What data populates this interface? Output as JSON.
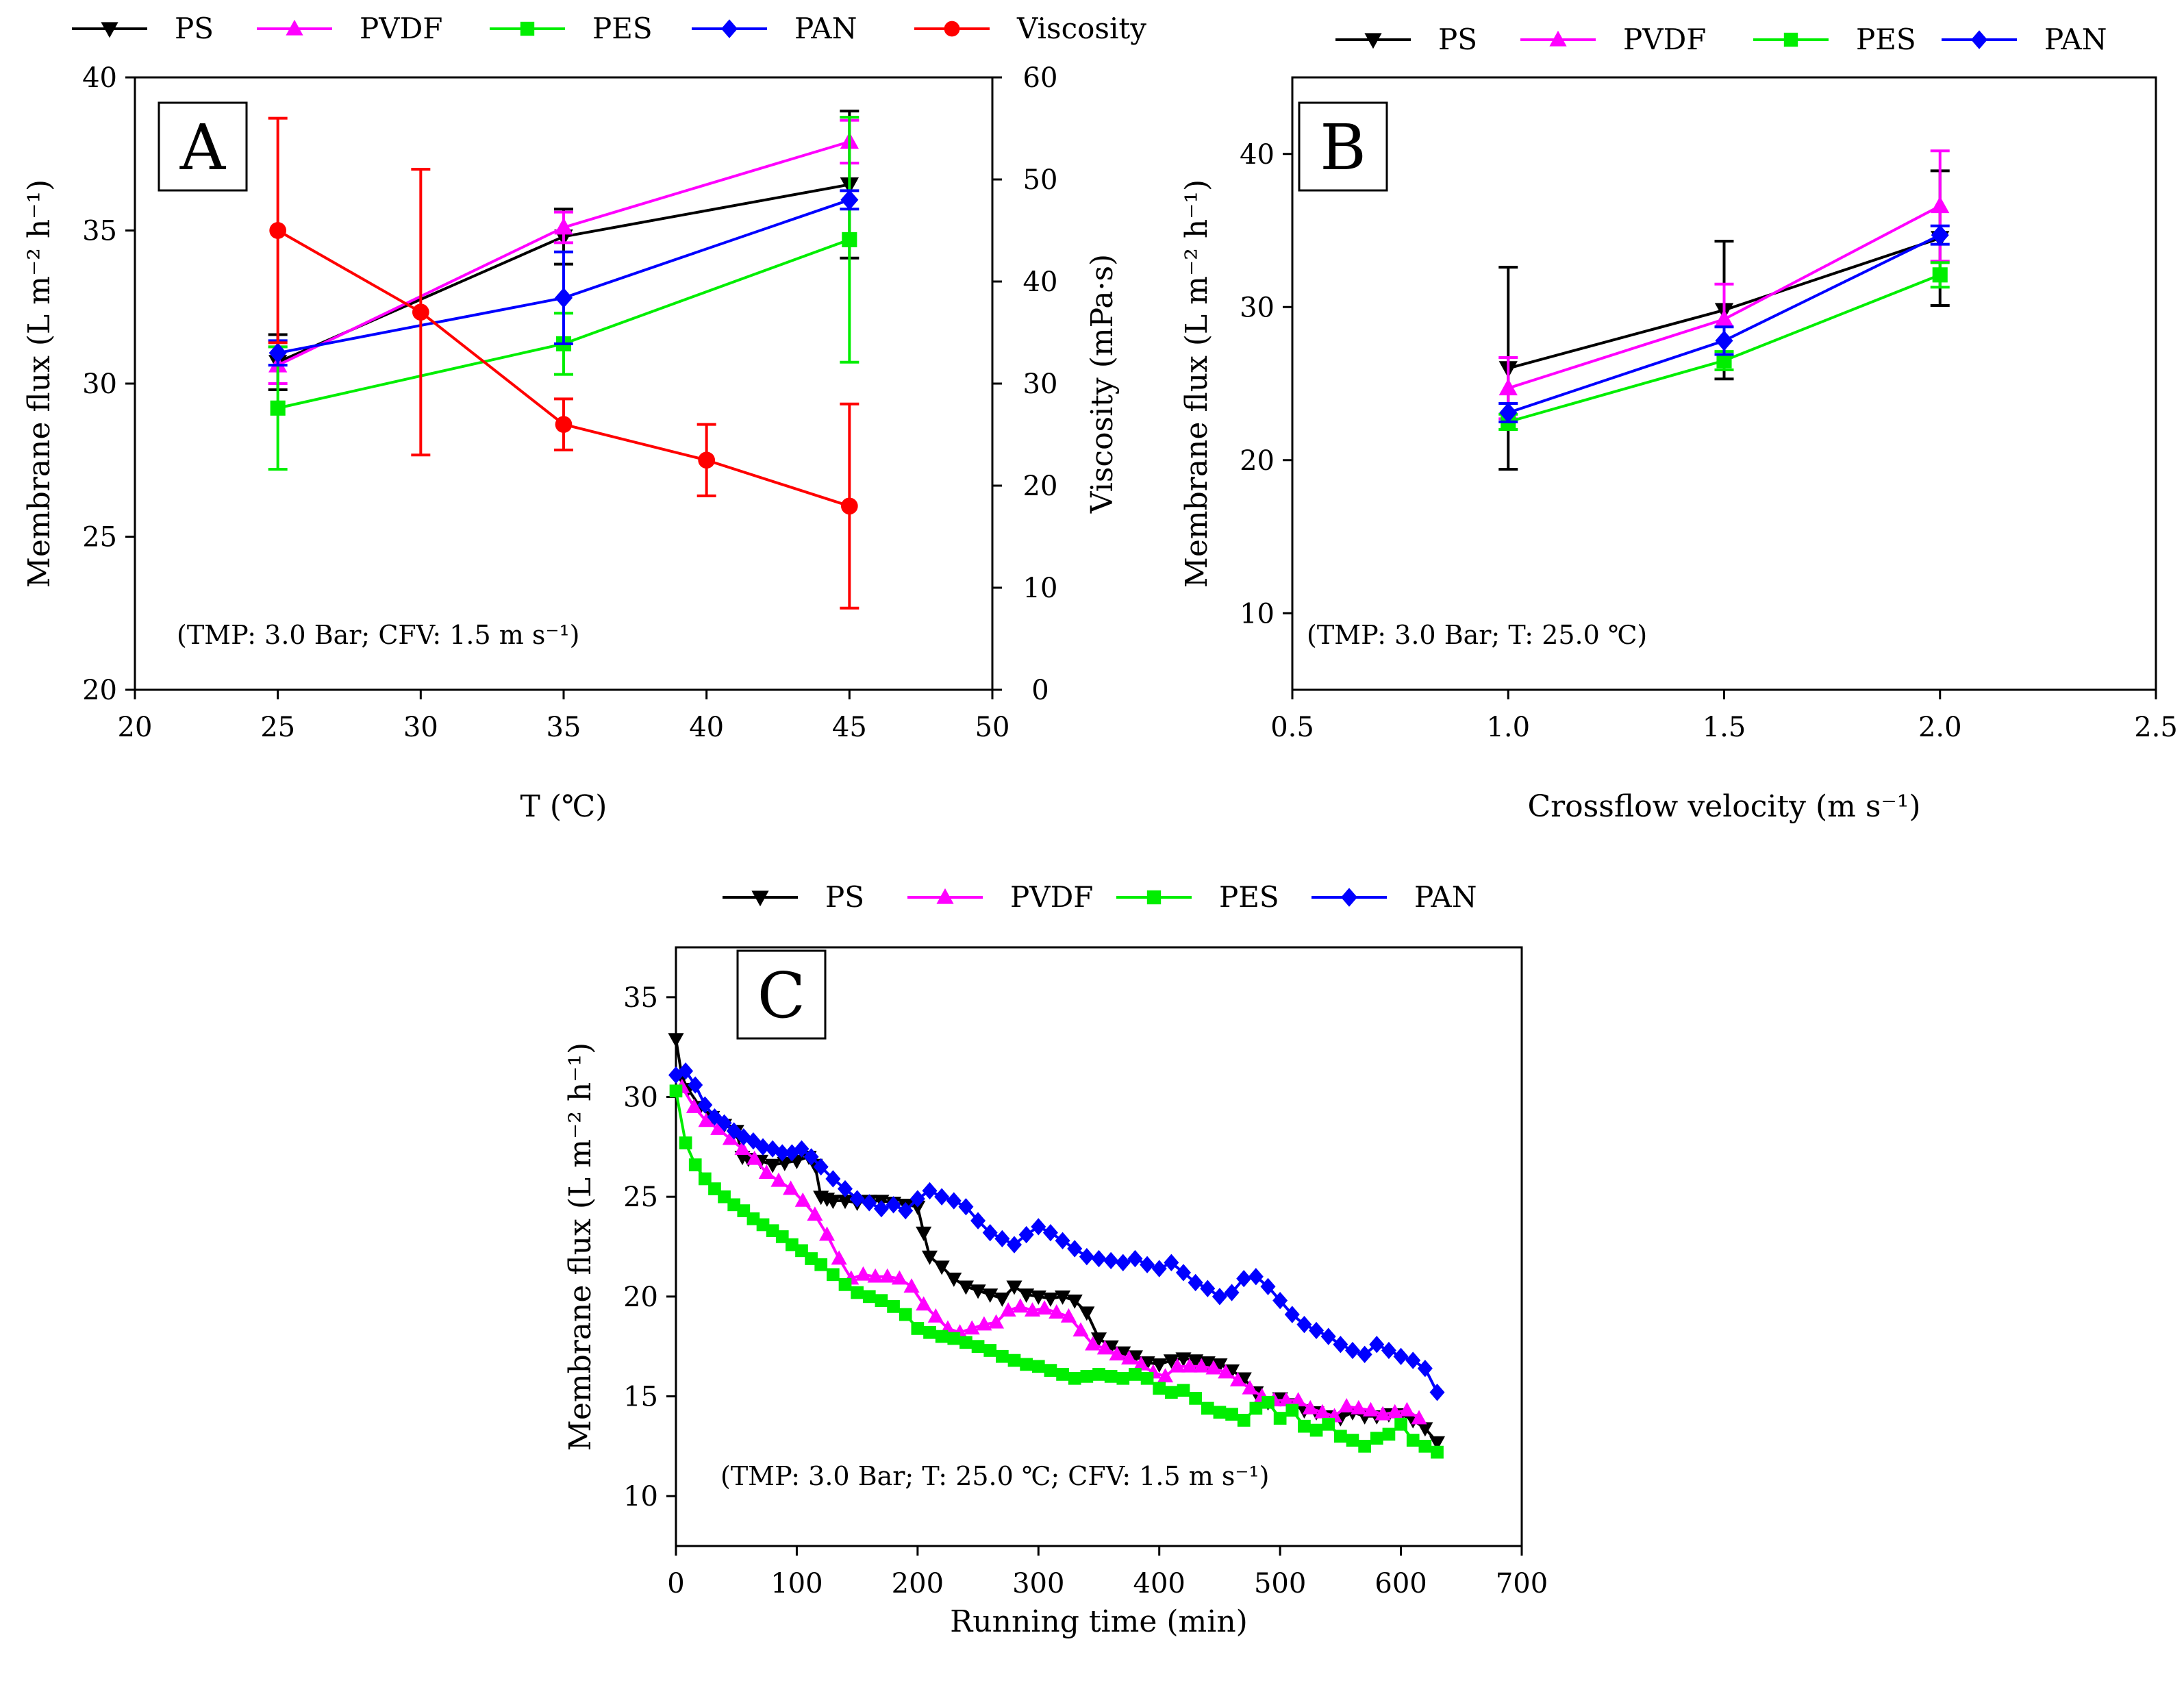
{
  "colors": {
    "PS": "#000000",
    "PVDF": "#ff00ff",
    "PES": "#00ee00",
    "PAN": "#0000ff",
    "Viscosity": "#ff0000",
    "axis": "#000000"
  },
  "chart_data": [
    {
      "id": "A",
      "type": "line",
      "panel_label": "A",
      "xlabel": "T (℃)",
      "ylabel": "Membrane flux (L m⁻² h⁻¹)",
      "y2label": "Viscosity (mPa·s)",
      "annotation": "(TMP: 3.0 Bar; CFV: 1.5 m s⁻¹)",
      "xlim": [
        20,
        50
      ],
      "ylim": [
        20,
        40
      ],
      "y2lim": [
        0,
        60
      ],
      "xticks": [
        "20",
        "25",
        "30",
        "35",
        "40",
        "45",
        "50"
      ],
      "yticks": [
        "20",
        "25",
        "30",
        "35",
        "40"
      ],
      "y2ticks": [
        "0",
        "10",
        "20",
        "30",
        "40",
        "50",
        "60"
      ],
      "legend": [
        "PS",
        "PVDF",
        "PES",
        "PAN",
        "Viscosity"
      ],
      "series": [
        {
          "name": "PS",
          "marker": "triangle-down",
          "x": [
            25,
            35,
            45
          ],
          "y": [
            30.7,
            34.8,
            36.5
          ],
          "err": [
            0.9,
            0.9,
            2.4
          ]
        },
        {
          "name": "PVDF",
          "marker": "triangle-up",
          "x": [
            25,
            35,
            45
          ],
          "y": [
            30.6,
            35.1,
            37.9
          ],
          "err": [
            0.6,
            0.5,
            0.7
          ]
        },
        {
          "name": "PES",
          "marker": "square",
          "x": [
            25,
            35,
            45
          ],
          "y": [
            29.2,
            31.3,
            34.7
          ],
          "err": [
            2.0,
            1.0,
            4.0
          ]
        },
        {
          "name": "PAN",
          "marker": "diamond",
          "x": [
            25,
            35,
            45
          ],
          "y": [
            31.0,
            32.8,
            36.0
          ],
          "err": [
            0.4,
            1.5,
            0.3
          ]
        },
        {
          "name": "Viscosity",
          "marker": "circle",
          "axis": "y2",
          "x": [
            25,
            30,
            35,
            40,
            45
          ],
          "y": [
            45,
            37,
            26,
            22.5,
            18
          ],
          "err": [
            11,
            14,
            2.5,
            3.5,
            10
          ]
        }
      ]
    },
    {
      "id": "B",
      "type": "line",
      "panel_label": "B",
      "xlabel": "Crossflow velocity (m s⁻¹)",
      "ylabel": "Membrane flux (L m⁻² h⁻¹)",
      "annotation": "(TMP: 3.0 Bar; T: 25.0 ℃)",
      "xlim": [
        0.5,
        2.5
      ],
      "ylim": [
        5,
        45
      ],
      "xticks": [
        "0.5",
        "1.0",
        "1.5",
        "2.0",
        "2.5"
      ],
      "yticks": [
        "10",
        "20",
        "30",
        "40"
      ],
      "legend": [
        "PS",
        "PVDF",
        "PES",
        "PAN"
      ],
      "series": [
        {
          "name": "PS",
          "marker": "triangle-down",
          "x": [
            1.0,
            1.5,
            2.0
          ],
          "y": [
            26.0,
            29.8,
            34.5
          ],
          "err": [
            6.6,
            4.5,
            4.4
          ]
        },
        {
          "name": "PVDF",
          "marker": "triangle-up",
          "x": [
            1.0,
            1.5,
            2.0
          ],
          "y": [
            24.7,
            29.2,
            36.6
          ],
          "err": [
            2.0,
            2.3,
            3.6
          ]
        },
        {
          "name": "PES",
          "marker": "square",
          "x": [
            1.0,
            1.5,
            2.0
          ],
          "y": [
            22.5,
            26.5,
            32.1
          ],
          "err": [
            0.5,
            0.6,
            0.8
          ]
        },
        {
          "name": "PAN",
          "marker": "diamond",
          "x": [
            1.0,
            1.5,
            2.0
          ],
          "y": [
            23.1,
            27.8,
            34.7
          ],
          "err": [
            0.6,
            0.9,
            0.6
          ]
        }
      ]
    },
    {
      "id": "C",
      "type": "line",
      "panel_label": "C",
      "xlabel": "Running time (min)",
      "ylabel": "Membrane flux (L m⁻² h⁻¹)",
      "annotation": "(TMP: 3.0 Bar; T: 25.0 ℃; CFV: 1.5 m s⁻¹)",
      "xlim": [
        0,
        700
      ],
      "ylim": [
        7.5,
        37.5
      ],
      "xticks": [
        "0",
        "100",
        "200",
        "300",
        "400",
        "500",
        "600",
        "700"
      ],
      "yticks": [
        "10",
        "15",
        "20",
        "25",
        "30",
        "35"
      ],
      "legend": [
        "PS",
        "PVDF",
        "PES",
        "PAN"
      ],
      "series": [
        {
          "name": "PS",
          "marker": "triangle-down",
          "x": [
            0,
            5,
            10,
            20,
            30,
            40,
            50,
            55,
            60,
            70,
            80,
            90,
            100,
            110,
            115,
            120,
            125,
            130,
            140,
            150,
            160,
            170,
            180,
            190,
            200,
            205,
            210,
            220,
            230,
            240,
            250,
            260,
            270,
            280,
            290,
            300,
            310,
            320,
            330,
            340,
            350,
            360,
            370,
            380,
            390,
            400,
            410,
            420,
            430,
            440,
            450,
            460,
            470,
            480,
            490,
            500,
            510,
            520,
            530,
            540,
            550,
            560,
            570,
            580,
            590,
            600,
            610,
            620,
            630
          ],
          "y": [
            32.9,
            31.0,
            30.4,
            29.5,
            29.0,
            28.6,
            28.3,
            27.0,
            26.9,
            26.8,
            26.6,
            26.7,
            26.8,
            27.0,
            26.6,
            25.0,
            24.9,
            24.8,
            24.8,
            24.7,
            24.8,
            24.8,
            24.7,
            24.6,
            24.5,
            23.2,
            22.0,
            21.5,
            20.9,
            20.5,
            20.3,
            20.1,
            19.9,
            20.5,
            20.1,
            20.0,
            19.9,
            20.0,
            19.8,
            19.2,
            17.9,
            17.5,
            17.2,
            17.0,
            16.7,
            16.6,
            16.8,
            16.9,
            16.8,
            16.7,
            16.6,
            16.3,
            15.9,
            15.2,
            14.7,
            14.9,
            14.6,
            14.3,
            14.2,
            14.0,
            13.9,
            14.2,
            14.0,
            14.0,
            14.1,
            14.1,
            13.8,
            13.4,
            12.7
          ]
        },
        {
          "name": "PVDF",
          "marker": "triangle-up",
          "x": [
            5,
            15,
            25,
            35,
            45,
            55,
            65,
            75,
            85,
            95,
            105,
            115,
            125,
            135,
            145,
            155,
            165,
            175,
            185,
            195,
            205,
            215,
            225,
            235,
            245,
            255,
            265,
            275,
            285,
            295,
            305,
            315,
            325,
            335,
            345,
            355,
            365,
            375,
            385,
            395,
            405,
            415,
            425,
            435,
            445,
            455,
            465,
            475,
            485,
            495,
            505,
            515,
            525,
            535,
            545,
            555,
            565,
            575,
            585,
            595,
            605,
            615
          ],
          "y": [
            30.5,
            29.5,
            28.8,
            28.4,
            27.9,
            27.4,
            26.9,
            26.2,
            25.8,
            25.4,
            24.8,
            24.1,
            23.1,
            21.9,
            20.9,
            21.1,
            21.0,
            21.0,
            20.9,
            20.5,
            19.6,
            19.0,
            18.4,
            18.2,
            18.4,
            18.6,
            18.7,
            19.3,
            19.5,
            19.3,
            19.4,
            19.2,
            19.0,
            18.3,
            17.6,
            17.4,
            17.1,
            16.9,
            16.6,
            16.2,
            16.0,
            16.5,
            16.5,
            16.5,
            16.4,
            16.2,
            15.8,
            15.4,
            15.0,
            14.8,
            14.8,
            14.8,
            14.4,
            14.2,
            14.0,
            14.5,
            14.4,
            14.3,
            14.1,
            14.2,
            14.3,
            13.9
          ]
        },
        {
          "name": "PES",
          "marker": "square",
          "x": [
            0,
            8,
            16,
            24,
            32,
            40,
            48,
            56,
            64,
            72,
            80,
            88,
            96,
            104,
            112,
            120,
            130,
            140,
            150,
            160,
            170,
            180,
            190,
            200,
            210,
            220,
            230,
            240,
            250,
            260,
            270,
            280,
            290,
            300,
            310,
            320,
            330,
            340,
            350,
            360,
            370,
            380,
            390,
            400,
            410,
            420,
            430,
            440,
            450,
            460,
            470,
            480,
            490,
            500,
            510,
            520,
            530,
            540,
            550,
            560,
            570,
            580,
            590,
            600,
            610,
            620,
            630
          ],
          "y": [
            30.3,
            27.7,
            26.6,
            25.9,
            25.4,
            25.0,
            24.6,
            24.3,
            23.9,
            23.6,
            23.3,
            23.0,
            22.6,
            22.3,
            21.9,
            21.6,
            21.1,
            20.6,
            20.2,
            20.0,
            19.8,
            19.5,
            19.1,
            18.4,
            18.2,
            18.0,
            17.9,
            17.7,
            17.5,
            17.3,
            17.0,
            16.8,
            16.6,
            16.5,
            16.3,
            16.1,
            15.9,
            16.0,
            16.1,
            16.0,
            15.9,
            16.1,
            15.9,
            15.4,
            15.2,
            15.3,
            14.9,
            14.4,
            14.2,
            14.1,
            13.8,
            14.4,
            14.7,
            13.9,
            14.3,
            13.5,
            13.3,
            13.6,
            13.0,
            12.8,
            12.5,
            12.9,
            13.1,
            13.6,
            12.8,
            12.5,
            12.2
          ]
        },
        {
          "name": "PAN",
          "marker": "diamond",
          "x": [
            0,
            8,
            16,
            24,
            32,
            40,
            48,
            56,
            64,
            72,
            80,
            88,
            96,
            104,
            112,
            120,
            130,
            140,
            150,
            160,
            170,
            180,
            190,
            200,
            210,
            220,
            230,
            240,
            250,
            260,
            270,
            280,
            290,
            300,
            310,
            320,
            330,
            340,
            350,
            360,
            370,
            380,
            390,
            400,
            410,
            420,
            430,
            440,
            450,
            460,
            470,
            480,
            490,
            500,
            510,
            520,
            530,
            540,
            550,
            560,
            570,
            580,
            590,
            600,
            610,
            620,
            630
          ],
          "y": [
            31.1,
            31.3,
            30.6,
            29.6,
            29.0,
            28.7,
            28.3,
            28.0,
            27.8,
            27.5,
            27.4,
            27.2,
            27.2,
            27.4,
            27.0,
            26.5,
            25.9,
            25.4,
            24.9,
            24.7,
            24.4,
            24.6,
            24.3,
            24.9,
            25.3,
            25.0,
            24.8,
            24.5,
            23.8,
            23.2,
            22.9,
            22.6,
            23.1,
            23.5,
            23.2,
            22.8,
            22.4,
            22.0,
            21.9,
            21.8,
            21.7,
            21.9,
            21.6,
            21.4,
            21.7,
            21.2,
            20.7,
            20.4,
            20.0,
            20.2,
            20.9,
            21.0,
            20.5,
            19.8,
            19.1,
            18.6,
            18.3,
            18.0,
            17.6,
            17.3,
            17.1,
            17.6,
            17.3,
            17.0,
            16.8,
            16.4,
            15.2
          ]
        }
      ]
    }
  ]
}
